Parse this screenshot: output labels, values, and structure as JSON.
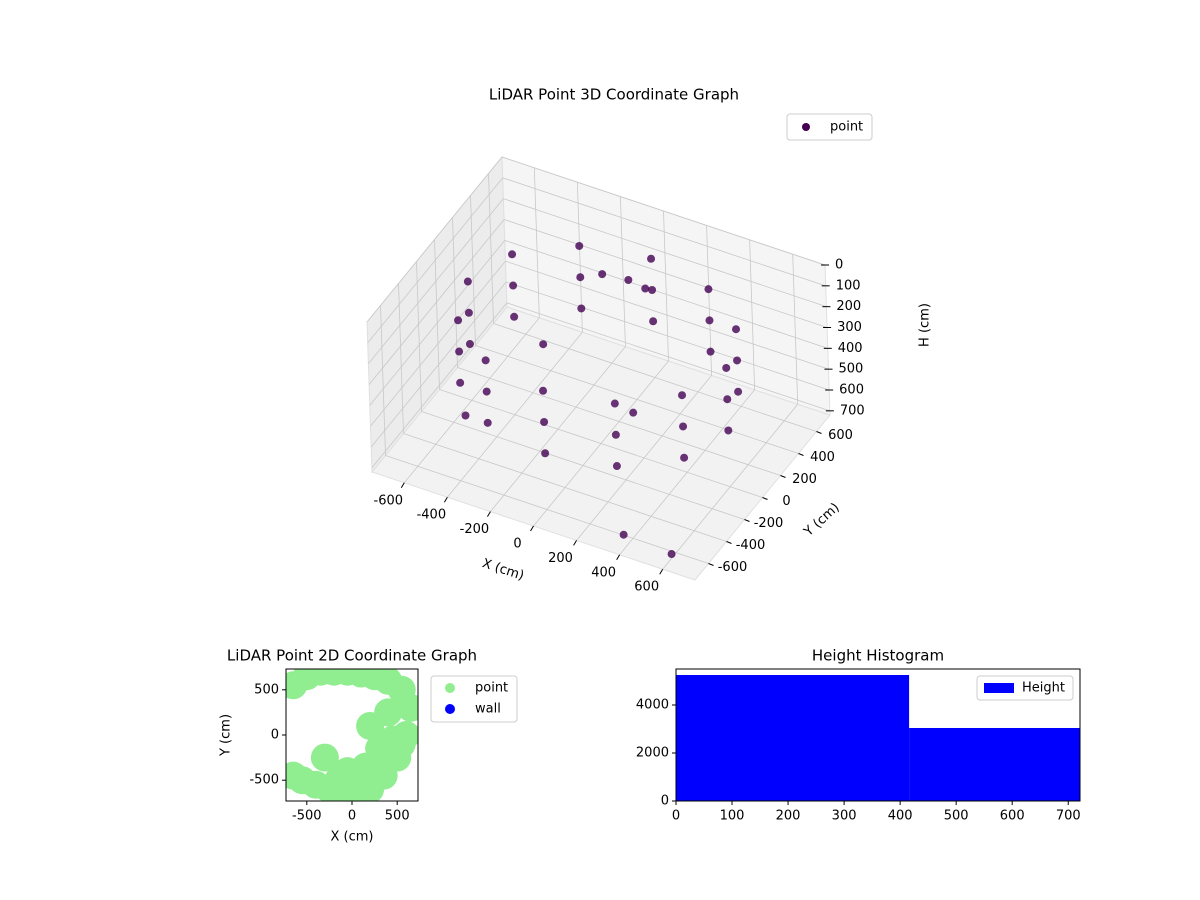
{
  "chart_data": [
    {
      "type": "scatter3d",
      "title": "LiDAR Point 3D Coordinate Graph",
      "xlabel": "X (cm)",
      "ylabel": "Y (cm)",
      "zlabel": "H (cm)",
      "xlim": [
        -750,
        750
      ],
      "ylim": [
        -750,
        750
      ],
      "zlim": [
        720,
        0
      ],
      "xticks": [
        -600,
        -400,
        -200,
        0,
        200,
        400,
        600
      ],
      "yticks": [
        -600,
        -400,
        -200,
        0,
        200,
        400,
        600
      ],
      "zticks": [
        0,
        100,
        200,
        300,
        400,
        500,
        600,
        700
      ],
      "grid": true,
      "legend": "upper right",
      "series": [
        {
          "name": "point",
          "color": "#440154",
          "x": [
            600,
            520,
            300,
            0,
            -300,
            -520,
            -600,
            -520,
            -300,
            0,
            300,
            520,
            600,
            520,
            300,
            0,
            -300,
            -520,
            -600,
            -520,
            -300,
            0,
            300,
            520,
            600,
            520,
            300,
            0,
            -300,
            -520,
            -600,
            -520,
            -300,
            0,
            300,
            520,
            -100,
            0,
            100,
            -300,
            200,
            -500,
            400,
            600
          ],
          "y": [
            0,
            300,
            520,
            600,
            520,
            300,
            0,
            -300,
            -520,
            -600,
            -520,
            -300,
            0,
            300,
            520,
            600,
            520,
            300,
            0,
            -300,
            -520,
            -600,
            -520,
            -300,
            0,
            300,
            520,
            600,
            520,
            300,
            0,
            -300,
            -520,
            -600,
            -520,
            -300,
            300,
            350,
            300,
            100,
            -100,
            -300,
            -700,
            -650
          ],
          "z": [
            150,
            150,
            150,
            150,
            150,
            150,
            150,
            150,
            150,
            150,
            150,
            150,
            300,
            300,
            300,
            300,
            300,
            300,
            300,
            300,
            300,
            300,
            300,
            300,
            450,
            450,
            450,
            450,
            450,
            450,
            450,
            450,
            450,
            450,
            450,
            450,
            100,
            120,
            100,
            400,
            450,
            600,
            650,
            700
          ]
        }
      ]
    },
    {
      "type": "scatter",
      "title": "LiDAR Point 2D Coordinate Graph",
      "xlabel": "X (cm)",
      "ylabel": "Y (cm)",
      "xlim": [
        -730,
        730
      ],
      "ylim": [
        -730,
        730
      ],
      "xticks": [
        -500,
        0,
        500
      ],
      "yticks": [
        -500,
        0,
        500
      ],
      "legend": "outside right",
      "series": [
        {
          "name": "point",
          "color": "#90ee90",
          "x": [
            -650,
            -500,
            -350,
            -200,
            -50,
            100,
            250,
            400,
            550,
            650,
            600,
            500,
            350,
            200,
            50,
            -100,
            -250,
            -400,
            -550,
            -650,
            300,
            450,
            150,
            -50,
            200,
            400,
            550,
            -300,
            -150,
            0
          ],
          "y": [
            550,
            650,
            700,
            700,
            700,
            680,
            650,
            600,
            500,
            300,
            0,
            -250,
            -450,
            -600,
            -650,
            -650,
            -600,
            -550,
            -500,
            -450,
            -150,
            -50,
            -350,
            -400,
            100,
            250,
            -100,
            -250,
            -500,
            -550
          ]
        },
        {
          "name": "wall",
          "color": "#0000ff",
          "x": [],
          "y": []
        }
      ]
    },
    {
      "type": "hist",
      "title": "Height Histogram",
      "bins": [
        0,
        416,
        721
      ],
      "counts": [
        5250,
        3042
      ],
      "xlim": [
        0,
        721
      ],
      "ylim": [
        0,
        5500
      ],
      "xticks": [
        0,
        100,
        200,
        300,
        400,
        500,
        600,
        700
      ],
      "yticks": [
        0,
        2000,
        4000
      ],
      "legend": "upper right",
      "series_name": "Height",
      "color": "#0000ff"
    }
  ]
}
